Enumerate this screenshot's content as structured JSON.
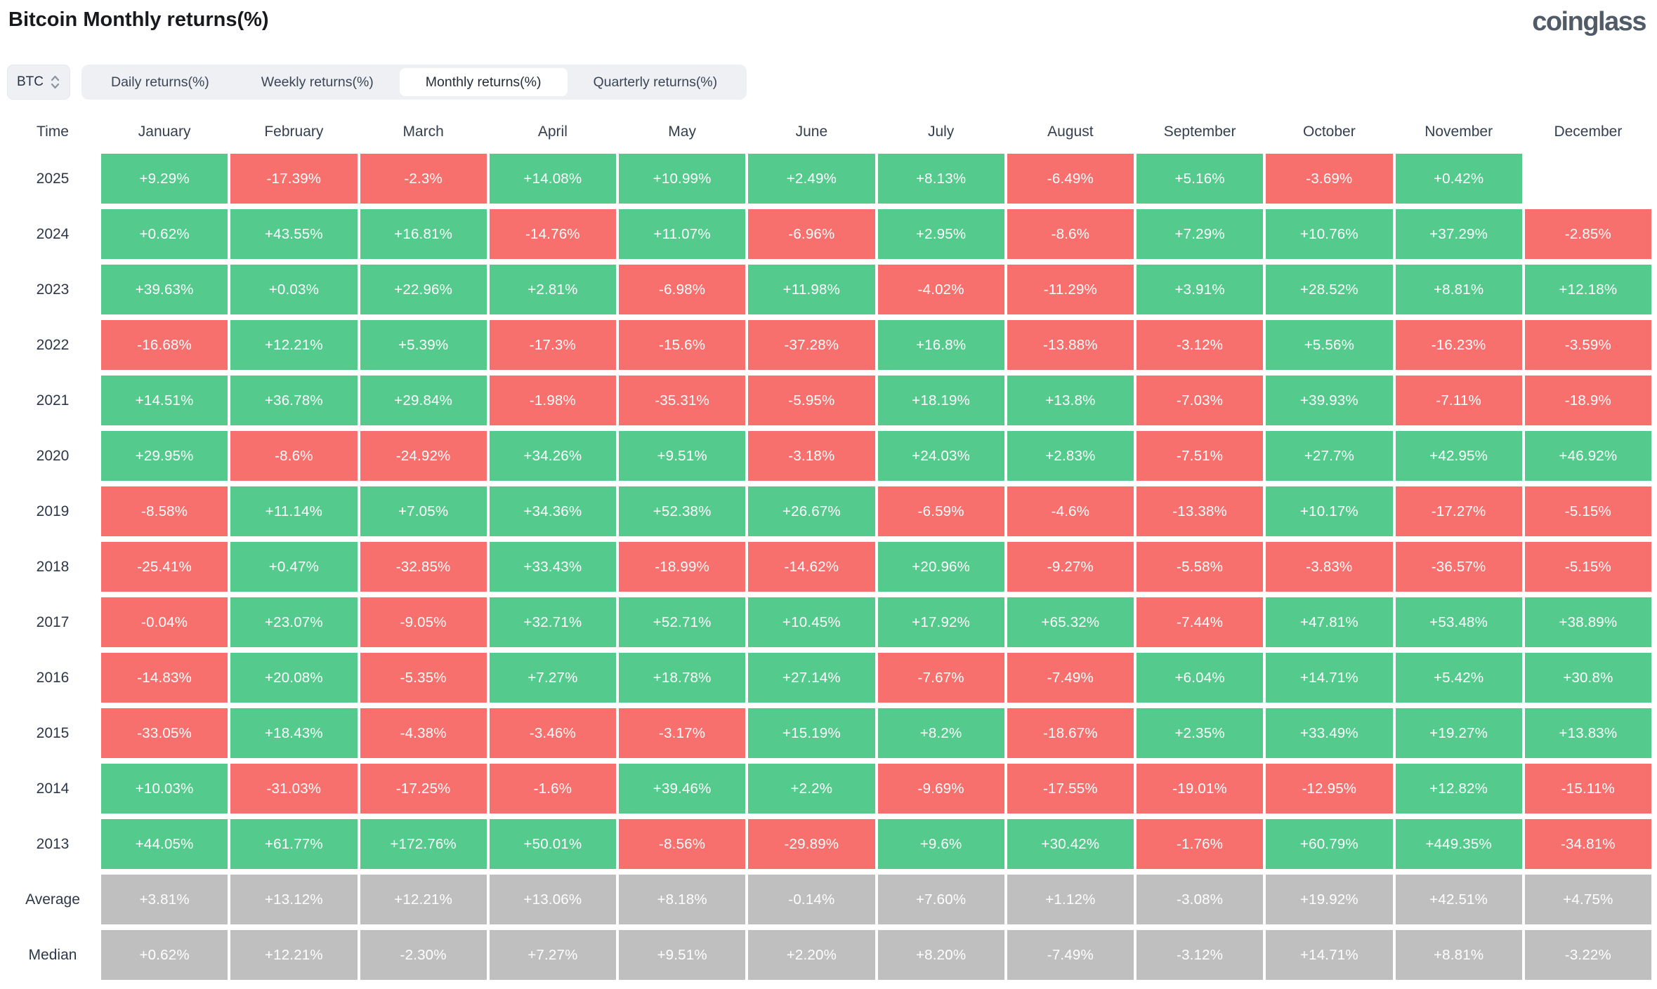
{
  "page": {
    "title": "Bitcoin Monthly returns(%)",
    "brand": "coinglass"
  },
  "controls": {
    "symbol_select": {
      "value": "BTC"
    },
    "tabs": [
      {
        "label": "Daily returns(%)",
        "active": false
      },
      {
        "label": "Weekly returns(%)",
        "active": false
      },
      {
        "label": "Monthly returns(%)",
        "active": true
      },
      {
        "label": "Quarterly returns(%)",
        "active": false
      }
    ]
  },
  "colors": {
    "positive": "#54cb8d",
    "negative": "#f7706d",
    "neutral": "#bfbfbf"
  },
  "chart_data": {
    "type": "heatmap",
    "title": "Bitcoin Monthly returns(%)",
    "legend_note": "green = positive monthly return, red = negative, gray = summary rows",
    "columns": [
      "Time",
      "January",
      "February",
      "March",
      "April",
      "May",
      "June",
      "July",
      "August",
      "September",
      "October",
      "November",
      "December"
    ],
    "rows": [
      {
        "label": "2025",
        "kind": "year",
        "values": [
          "+9.29%",
          "-17.39%",
          "-2.3%",
          "+14.08%",
          "+10.99%",
          "+2.49%",
          "+8.13%",
          "-6.49%",
          "+5.16%",
          "-3.69%",
          "+0.42%",
          null
        ]
      },
      {
        "label": "2024",
        "kind": "year",
        "values": [
          "+0.62%",
          "+43.55%",
          "+16.81%",
          "-14.76%",
          "+11.07%",
          "-6.96%",
          "+2.95%",
          "-8.6%",
          "+7.29%",
          "+10.76%",
          "+37.29%",
          "-2.85%"
        ]
      },
      {
        "label": "2023",
        "kind": "year",
        "values": [
          "+39.63%",
          "+0.03%",
          "+22.96%",
          "+2.81%",
          "-6.98%",
          "+11.98%",
          "-4.02%",
          "-11.29%",
          "+3.91%",
          "+28.52%",
          "+8.81%",
          "+12.18%"
        ]
      },
      {
        "label": "2022",
        "kind": "year",
        "values": [
          "-16.68%",
          "+12.21%",
          "+5.39%",
          "-17.3%",
          "-15.6%",
          "-37.28%",
          "+16.8%",
          "-13.88%",
          "-3.12%",
          "+5.56%",
          "-16.23%",
          "-3.59%"
        ]
      },
      {
        "label": "2021",
        "kind": "year",
        "values": [
          "+14.51%",
          "+36.78%",
          "+29.84%",
          "-1.98%",
          "-35.31%",
          "-5.95%",
          "+18.19%",
          "+13.8%",
          "-7.03%",
          "+39.93%",
          "-7.11%",
          "-18.9%"
        ]
      },
      {
        "label": "2020",
        "kind": "year",
        "values": [
          "+29.95%",
          "-8.6%",
          "-24.92%",
          "+34.26%",
          "+9.51%",
          "-3.18%",
          "+24.03%",
          "+2.83%",
          "-7.51%",
          "+27.7%",
          "+42.95%",
          "+46.92%"
        ]
      },
      {
        "label": "2019",
        "kind": "year",
        "values": [
          "-8.58%",
          "+11.14%",
          "+7.05%",
          "+34.36%",
          "+52.38%",
          "+26.67%",
          "-6.59%",
          "-4.6%",
          "-13.38%",
          "+10.17%",
          "-17.27%",
          "-5.15%"
        ]
      },
      {
        "label": "2018",
        "kind": "year",
        "values": [
          "-25.41%",
          "+0.47%",
          "-32.85%",
          "+33.43%",
          "-18.99%",
          "-14.62%",
          "+20.96%",
          "-9.27%",
          "-5.58%",
          "-3.83%",
          "-36.57%",
          "-5.15%"
        ]
      },
      {
        "label": "2017",
        "kind": "year",
        "values": [
          "-0.04%",
          "+23.07%",
          "-9.05%",
          "+32.71%",
          "+52.71%",
          "+10.45%",
          "+17.92%",
          "+65.32%",
          "-7.44%",
          "+47.81%",
          "+53.48%",
          "+38.89%"
        ]
      },
      {
        "label": "2016",
        "kind": "year",
        "values": [
          "-14.83%",
          "+20.08%",
          "-5.35%",
          "+7.27%",
          "+18.78%",
          "+27.14%",
          "-7.67%",
          "-7.49%",
          "+6.04%",
          "+14.71%",
          "+5.42%",
          "+30.8%"
        ]
      },
      {
        "label": "2015",
        "kind": "year",
        "values": [
          "-33.05%",
          "+18.43%",
          "-4.38%",
          "-3.46%",
          "-3.17%",
          "+15.19%",
          "+8.2%",
          "-18.67%",
          "+2.35%",
          "+33.49%",
          "+19.27%",
          "+13.83%"
        ]
      },
      {
        "label": "2014",
        "kind": "year",
        "values": [
          "+10.03%",
          "-31.03%",
          "-17.25%",
          "-1.6%",
          "+39.46%",
          "+2.2%",
          "-9.69%",
          "-17.55%",
          "-19.01%",
          "-12.95%",
          "+12.82%",
          "-15.11%"
        ]
      },
      {
        "label": "2013",
        "kind": "year",
        "values": [
          "+44.05%",
          "+61.77%",
          "+172.76%",
          "+50.01%",
          "-8.56%",
          "-29.89%",
          "+9.6%",
          "+30.42%",
          "-1.76%",
          "+60.79%",
          "+449.35%",
          "-34.81%"
        ]
      },
      {
        "label": "Average",
        "kind": "summary",
        "values": [
          "+3.81%",
          "+13.12%",
          "+12.21%",
          "+13.06%",
          "+8.18%",
          "-0.14%",
          "+7.60%",
          "+1.12%",
          "-3.08%",
          "+19.92%",
          "+42.51%",
          "+4.75%"
        ]
      },
      {
        "label": "Median",
        "kind": "summary",
        "values": [
          "+0.62%",
          "+12.21%",
          "-2.30%",
          "+7.27%",
          "+9.51%",
          "+2.20%",
          "+8.20%",
          "-7.49%",
          "-3.12%",
          "+14.71%",
          "+8.81%",
          "-3.22%"
        ]
      }
    ]
  }
}
